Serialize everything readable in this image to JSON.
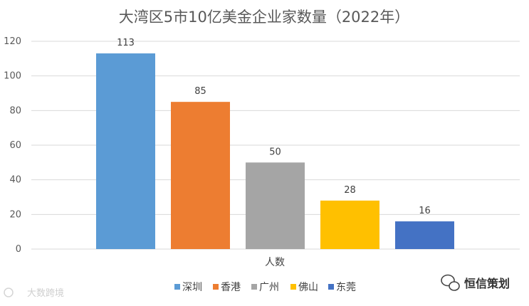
{
  "chart_data": {
    "type": "bar",
    "title": "大湾区5市10亿美金企业家数量（2022年）",
    "xlabel": "人数",
    "ylabel": "",
    "categories": [
      "深圳",
      "香港",
      "广州",
      "佛山",
      "东莞"
    ],
    "values": [
      113,
      85,
      50,
      28,
      16
    ],
    "colors": [
      "#5B9BD5",
      "#ED7D31",
      "#A5A5A5",
      "#FFC000",
      "#4472C4"
    ],
    "ylim": [
      0,
      120
    ],
    "yticks": [
      "0",
      "20",
      "40",
      "60",
      "80",
      "100",
      "120"
    ],
    "data_labels": [
      "113",
      "85",
      "50",
      "28",
      "16"
    ],
    "grid": true,
    "legend": "bottom"
  },
  "watermarks": {
    "left": "大数跨境",
    "right": "恒信策划"
  }
}
